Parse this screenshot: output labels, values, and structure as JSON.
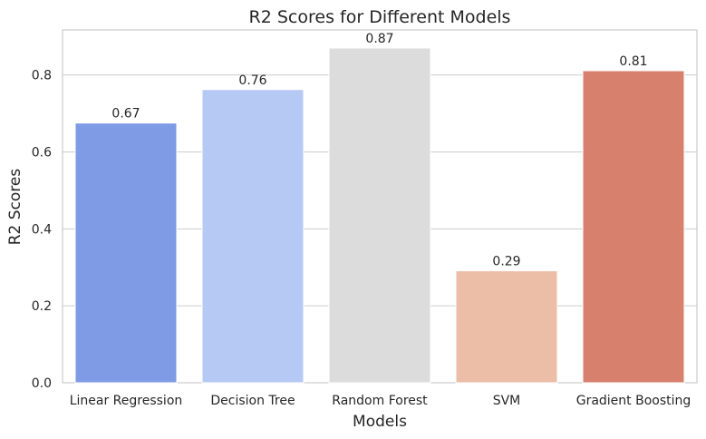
{
  "chart_data": {
    "type": "bar",
    "title": "R2 Scores for Different Models",
    "xlabel": "Models",
    "ylabel": "R2 Scores",
    "categories": [
      "Linear Regression",
      "Decision Tree",
      "Random Forest",
      "SVM",
      "Gradient Boosting"
    ],
    "values": [
      0.675,
      0.762,
      0.87,
      0.291,
      0.811
    ],
    "data_labels": [
      "0.67",
      "0.76",
      "0.87",
      "0.29",
      "0.81"
    ],
    "colors": [
      "#7f9be6",
      "#b5c9f4",
      "#dcdcdc",
      "#ecbda7",
      "#d7806d"
    ],
    "ylim": [
      0,
      0.917
    ],
    "yticks": [
      0.0,
      0.2,
      0.4,
      0.6,
      0.8
    ],
    "ytick_labels": [
      "0.0",
      "0.2",
      "0.4",
      "0.6",
      "0.8"
    ],
    "grid": "y-axis",
    "legend": "none"
  }
}
